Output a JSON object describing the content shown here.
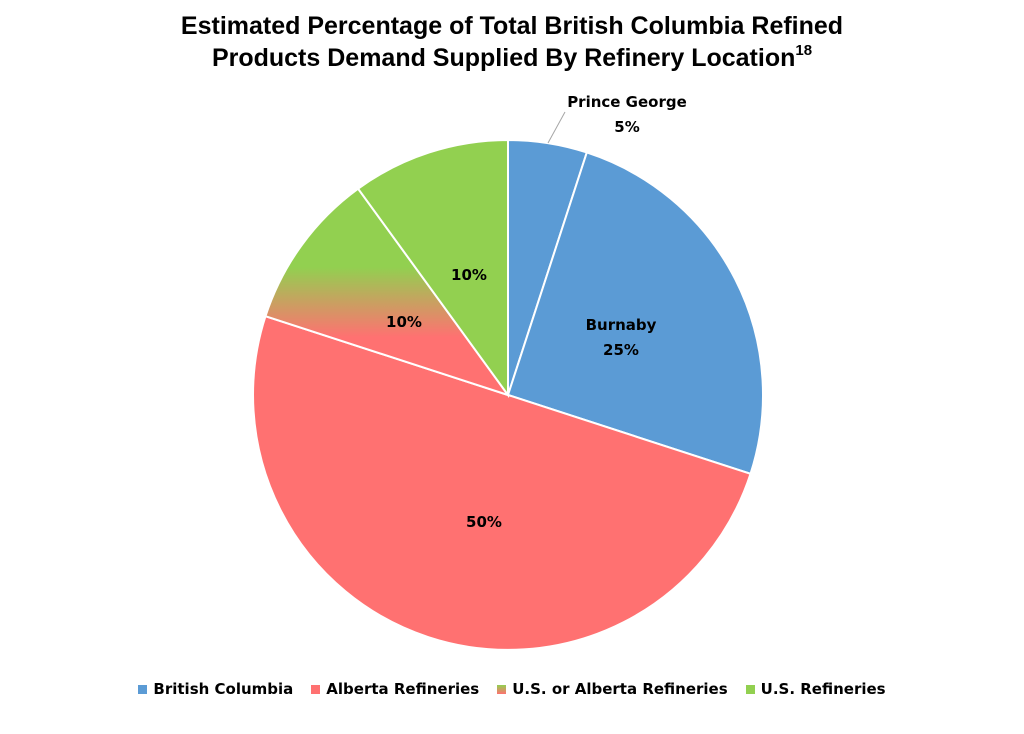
{
  "chart_data": {
    "type": "pie",
    "title_line1": "Estimated Percentage of Total British Columbia Refined",
    "title_line2": "Products Demand Supplied By Refinery Location",
    "title_superscript": "18",
    "slices": [
      {
        "label": "Prince George",
        "value": 5,
        "value_label": "5%",
        "category": "British Columbia",
        "color": "#5b9bd5"
      },
      {
        "label": "Burnaby",
        "value": 25,
        "value_label": "25%",
        "category": "British Columbia",
        "color": "#5b9bd5"
      },
      {
        "label": "",
        "value": 50,
        "value_label": "50%",
        "category": "Alberta Refineries",
        "color": "#ff7171"
      },
      {
        "label": "",
        "value": 10,
        "value_label": "10%",
        "category": "U.S. or Alberta Refineries",
        "color": "gradient"
      },
      {
        "label": "",
        "value": 10,
        "value_label": "10%",
        "category": "U.S. Refineries",
        "color": "#92d050"
      }
    ],
    "legend": [
      {
        "label": "British Columbia",
        "color": "#5b9bd5"
      },
      {
        "label": "Alberta Refineries",
        "color": "#ff7171"
      },
      {
        "label": "U.S. or Alberta Refineries",
        "color": "gradient"
      },
      {
        "label": "U.S. Refineries",
        "color": "#92d050"
      }
    ],
    "legend_position": "bottom"
  }
}
